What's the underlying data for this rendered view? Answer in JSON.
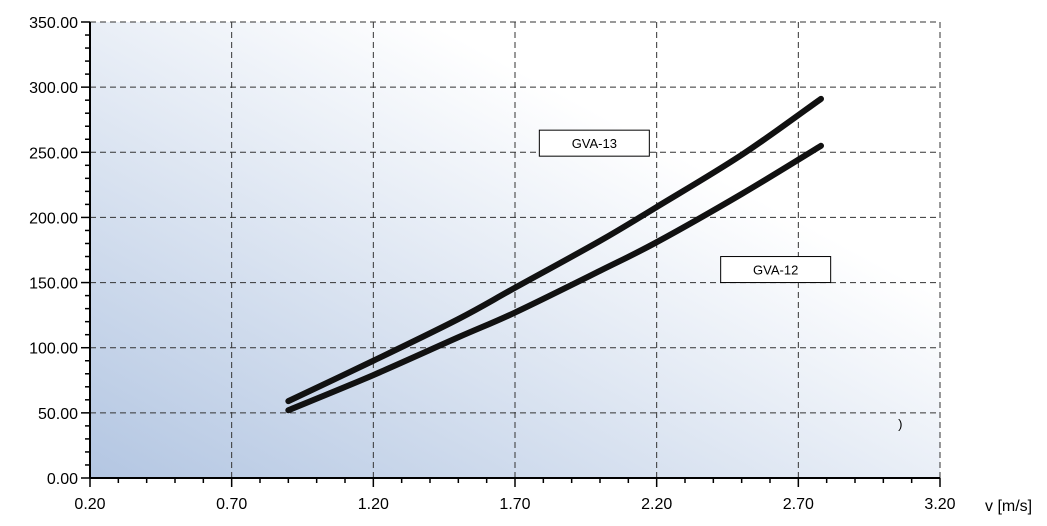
{
  "chart_data": {
    "type": "line",
    "title": "",
    "xlabel": "v [m/s]",
    "ylabel": "",
    "xlim": [
      0.2,
      3.2
    ],
    "ylim": [
      0,
      350
    ],
    "x_ticks": [
      "0.20",
      "0.70",
      "1.20",
      "1.70",
      "2.20",
      "2.70",
      "3.20"
    ],
    "y_ticks": [
      "0.00",
      "50.00",
      "100.00",
      "150.00",
      "200.00",
      "250.00",
      "300.00",
      "350.00"
    ],
    "grid": true,
    "background": {
      "gradient_from": "#b3c6e2",
      "gradient_to": "#ffffff"
    },
    "series": [
      {
        "name": "GVA-13",
        "x": [
          0.9,
          1.2,
          1.5,
          1.7,
          2.0,
          2.2,
          2.5,
          2.78
        ],
        "y": [
          59,
          90,
          122,
          146,
          182,
          208,
          248,
          291
        ]
      },
      {
        "name": "GVA-12",
        "x": [
          0.9,
          1.2,
          1.5,
          1.7,
          2.0,
          2.2,
          2.5,
          2.78
        ],
        "y": [
          52,
          79,
          108,
          127,
          159,
          181,
          218,
          255
        ]
      }
    ],
    "annotations": [
      {
        "text": "GVA-13",
        "x": 1.98,
        "y": 257
      },
      {
        "text": "GVA-12",
        "x": 2.62,
        "y": 160
      },
      {
        "text": ")",
        "x": 3.06,
        "y": 42
      }
    ]
  }
}
